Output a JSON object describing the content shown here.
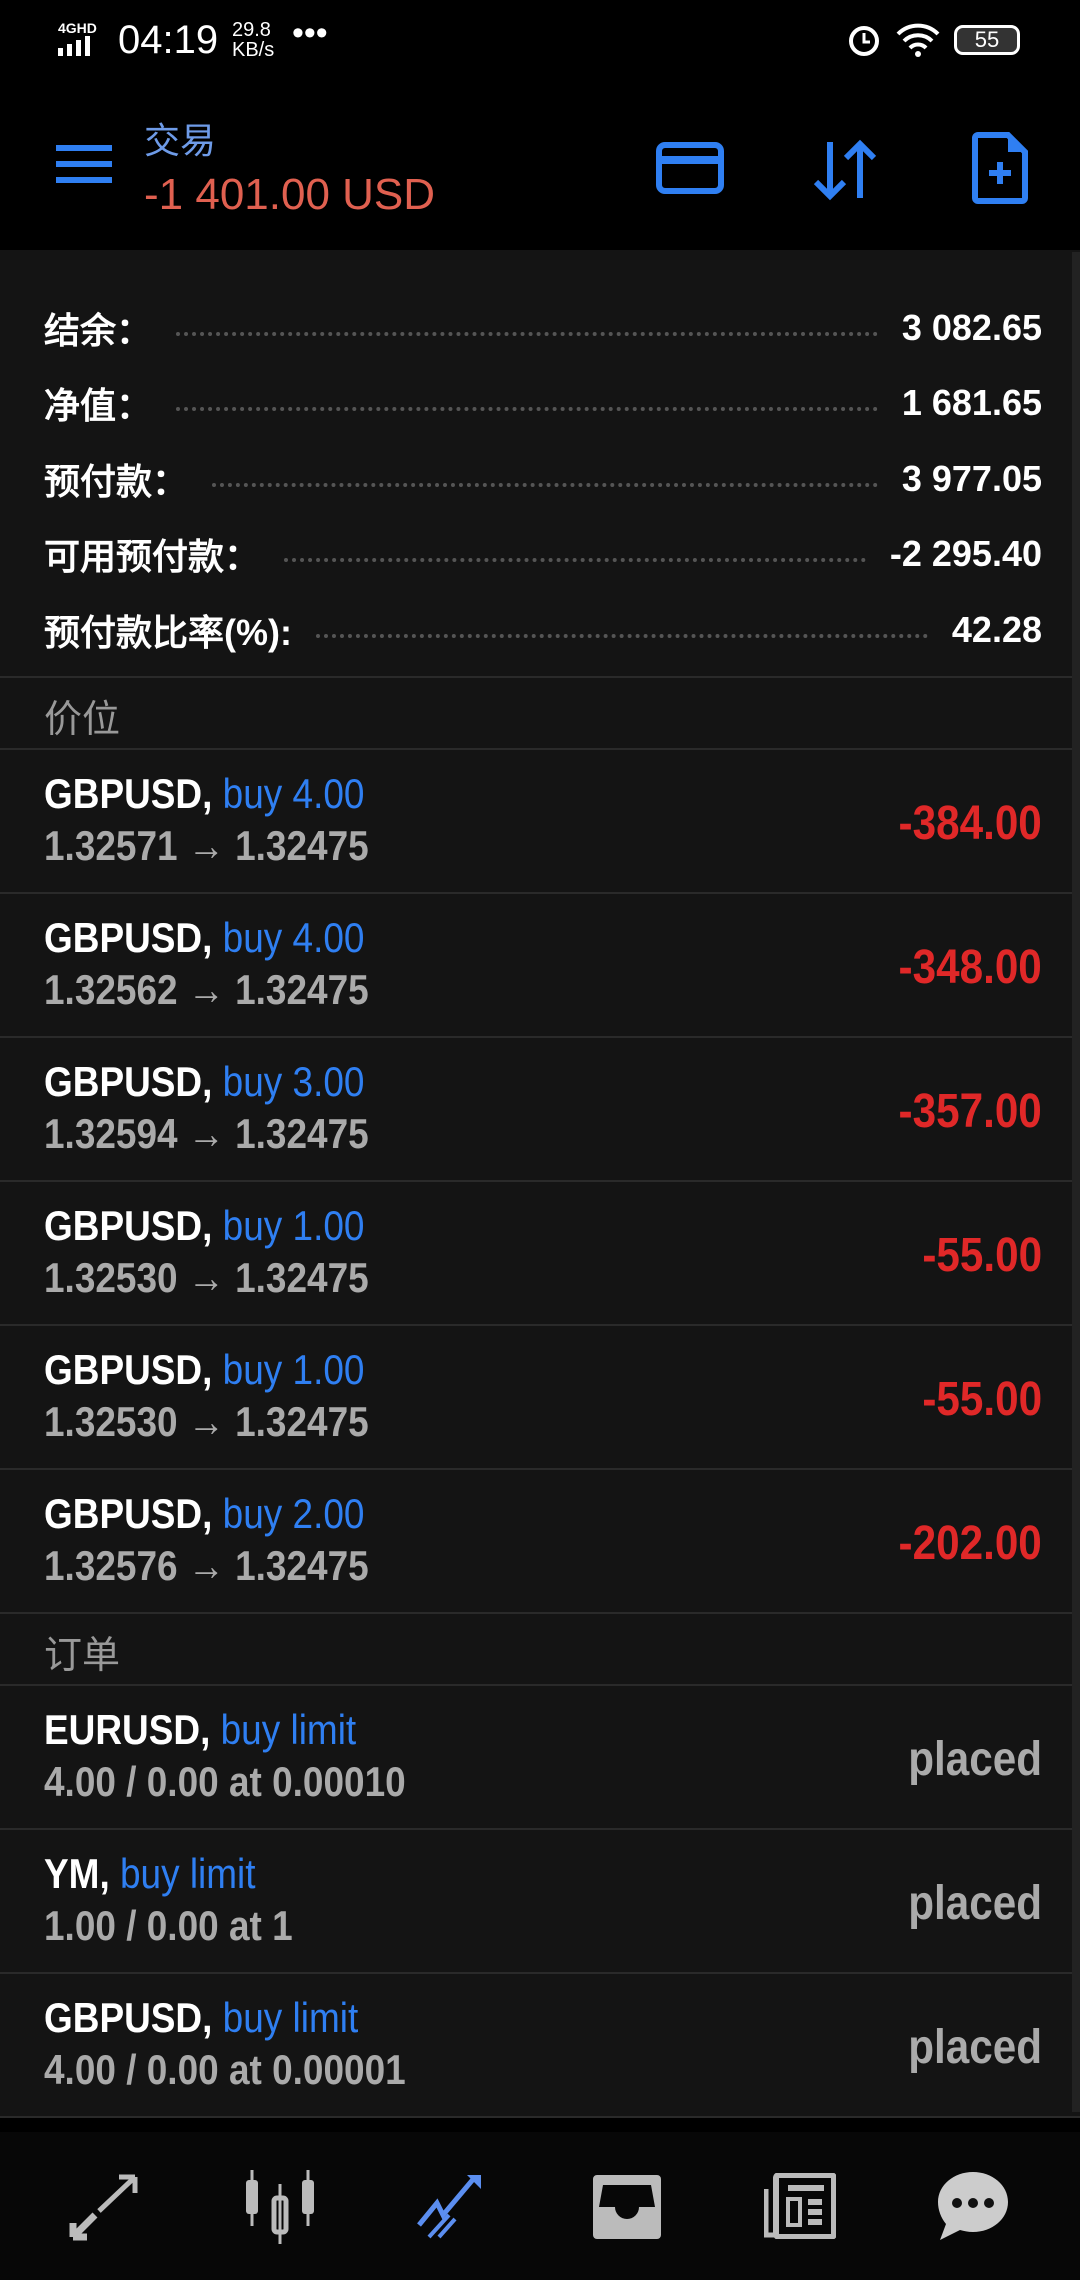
{
  "status": {
    "network": "4GHD",
    "time": "04:19",
    "speed_value": "29.8",
    "speed_unit": "KB/s",
    "more": "•••",
    "battery": "55"
  },
  "header": {
    "title": "交易",
    "amount": "-1 401.00 USD"
  },
  "summary": [
    {
      "label": "结余：",
      "value": "3 082.65"
    },
    {
      "label": "净值：",
      "value": "1 681.65"
    },
    {
      "label": "预付款：",
      "value": "3 977.05"
    },
    {
      "label": "可用预付款：",
      "value": "-2 295.40"
    },
    {
      "label": "预付款比率(%):",
      "value": "42.28"
    }
  ],
  "positions_title": "价位",
  "positions": [
    {
      "symbol": "GBPUSD,",
      "side": "buy 4.00",
      "prices": "1.32571 → 1.32475",
      "profit": "-384.00"
    },
    {
      "symbol": "GBPUSD,",
      "side": "buy 4.00",
      "prices": "1.32562 → 1.32475",
      "profit": "-348.00"
    },
    {
      "symbol": "GBPUSD,",
      "side": "buy 3.00",
      "prices": "1.32594 → 1.32475",
      "profit": "-357.00"
    },
    {
      "symbol": "GBPUSD,",
      "side": "buy 1.00",
      "prices": "1.32530 → 1.32475",
      "profit": "-55.00"
    },
    {
      "symbol": "GBPUSD,",
      "side": "buy 1.00",
      "prices": "1.32530 → 1.32475",
      "profit": "-55.00"
    },
    {
      "symbol": "GBPUSD,",
      "side": "buy 2.00",
      "prices": "1.32576 → 1.32475",
      "profit": "-202.00"
    }
  ],
  "orders_title": "订单",
  "orders": [
    {
      "symbol": "EURUSD,",
      "side": "buy limit",
      "detail": "4.00 / 0.00 at 0.00010",
      "status": "placed"
    },
    {
      "symbol": "YM,",
      "side": "buy limit",
      "detail": "1.00 / 0.00 at 1",
      "status": "placed"
    },
    {
      "symbol": "GBPUSD,",
      "side": "buy limit",
      "detail": "4.00 / 0.00 at 0.00001",
      "status": "placed"
    }
  ],
  "nav": [
    "quotes-icon",
    "chart-icon",
    "trade-icon",
    "history-icon",
    "news-icon",
    "messages-icon"
  ],
  "colors": {
    "accent": "#2f7ff2",
    "loss": "#e02828",
    "active_nav": "#5b8ef0"
  }
}
